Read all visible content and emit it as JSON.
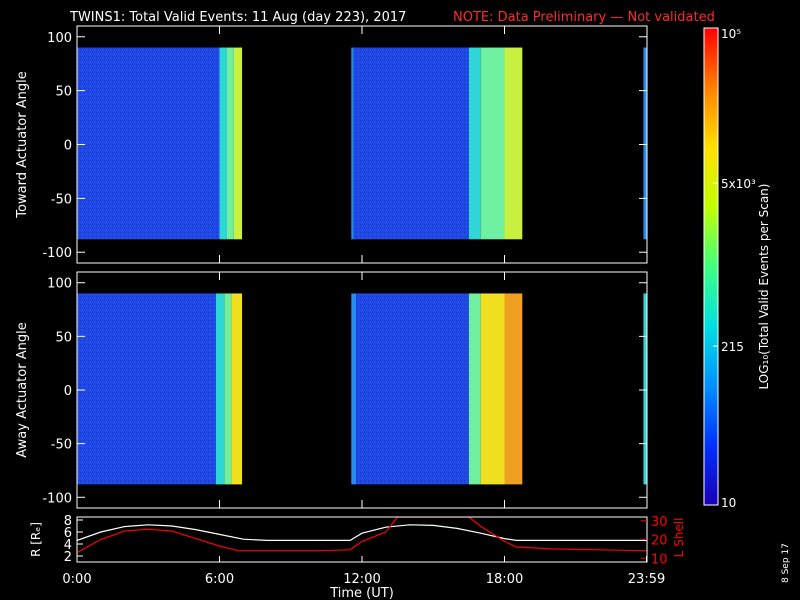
{
  "header": {
    "title": "TWINS1: Total Valid Events: 11 Aug (day 223), 2017",
    "note": "NOTE: Data Preliminary — Not validated"
  },
  "side_date": "8 Sep 17",
  "chart_data": [
    {
      "type": "heatmap",
      "name": "top-panel",
      "ylabel": "Toward Actuator Angle",
      "ylim": [
        -110,
        110
      ],
      "yticks": [
        100,
        50,
        0,
        -50,
        -100
      ],
      "xlim": [
        0,
        24
      ],
      "data_y_range": [
        -88,
        90
      ],
      "blocks": [
        {
          "start": 0.0,
          "end": 6.0,
          "level": "blue"
        },
        {
          "start": 6.0,
          "end": 6.3,
          "level": "cyan"
        },
        {
          "start": 6.3,
          "end": 6.6,
          "level": "lightgreen"
        },
        {
          "start": 6.6,
          "end": 6.95,
          "level": "yellowgreen"
        },
        {
          "start": 11.55,
          "end": 11.65,
          "level": "lightblue"
        },
        {
          "start": 11.65,
          "end": 16.5,
          "level": "blue"
        },
        {
          "start": 16.5,
          "end": 17.0,
          "level": "cyan"
        },
        {
          "start": 17.0,
          "end": 18.0,
          "level": "lightgreen"
        },
        {
          "start": 18.0,
          "end": 18.75,
          "level": "yellowgreen"
        },
        {
          "start": 23.85,
          "end": 23.98,
          "level": "lightblue"
        }
      ]
    },
    {
      "type": "heatmap",
      "name": "bottom-panel",
      "ylabel": "Away Actuator Angle",
      "ylim": [
        -110,
        110
      ],
      "yticks": [
        100,
        50,
        0,
        -50,
        -100
      ],
      "xlim": [
        0,
        24
      ],
      "data_y_range": [
        -88,
        90
      ],
      "blocks": [
        {
          "start": 0.0,
          "end": 5.85,
          "level": "blue"
        },
        {
          "start": 5.85,
          "end": 6.2,
          "level": "cyan"
        },
        {
          "start": 6.2,
          "end": 6.5,
          "level": "lightgreen"
        },
        {
          "start": 6.5,
          "end": 6.95,
          "level": "yellow"
        },
        {
          "start": 11.55,
          "end": 11.75,
          "level": "lightblue"
        },
        {
          "start": 11.75,
          "end": 16.5,
          "level": "blue"
        },
        {
          "start": 16.5,
          "end": 17.0,
          "level": "lightgreen"
        },
        {
          "start": 17.0,
          "end": 18.0,
          "level": "yellow"
        },
        {
          "start": 18.0,
          "end": 18.75,
          "level": "orange"
        },
        {
          "start": 23.85,
          "end": 23.98,
          "level": "cyan"
        }
      ]
    },
    {
      "type": "line",
      "name": "orbit-panel",
      "ylabel_left": "R [Rₑ]",
      "ylabel_right": "L Shell",
      "yleft_ticks": [
        2,
        4,
        6,
        8
      ],
      "yleft_lim": [
        1,
        8.5
      ],
      "yright_ticks": [
        10,
        20,
        30
      ],
      "yright_lim": [
        8,
        32
      ],
      "xlim": [
        0,
        24
      ],
      "xticks": [
        "0:00",
        "6:00",
        "12:00",
        "18:00",
        "23:59"
      ],
      "xtick_values": [
        0,
        6,
        12,
        18,
        23.98
      ],
      "xlabel": "Time (UT)",
      "series": [
        {
          "axis": "left",
          "color": "#ffffff",
          "x": [
            0,
            1,
            2,
            3,
            4,
            5,
            6,
            7,
            8,
            9,
            10,
            11,
            11.5,
            12,
            13,
            14,
            15,
            16,
            17,
            18,
            18.5,
            19,
            20,
            21,
            22,
            23,
            24
          ],
          "y": [
            4.6,
            6.0,
            6.9,
            7.2,
            7.0,
            6.4,
            5.6,
            4.8,
            4.6,
            4.6,
            4.6,
            4.6,
            4.6,
            5.8,
            6.8,
            7.2,
            7.1,
            6.6,
            5.8,
            4.9,
            4.6,
            4.6,
            4.6,
            4.6,
            4.6,
            4.6,
            4.6
          ]
        },
        {
          "axis": "right",
          "color": "#ff0000",
          "x": [
            0,
            1,
            2,
            3,
            4,
            5,
            6,
            6.8,
            8,
            10,
            11.5,
            12,
            13,
            13.5,
            14.2,
            16.5,
            17,
            18,
            18.5,
            20,
            22,
            24
          ],
          "y": [
            13,
            20,
            24.5,
            25.5,
            24.5,
            20.5,
            16.5,
            14,
            14,
            14,
            14.5,
            19,
            24,
            32,
            32,
            32,
            27,
            19,
            16,
            15,
            14.5,
            14
          ]
        }
      ]
    },
    {
      "type": "heatmap",
      "name": "colorbar",
      "scale": "log",
      "label": "LOG₁₀(Total Valid Events per Scan)",
      "ticks": [
        {
          "value": 10,
          "label": "10"
        },
        {
          "value": 215,
          "label": "215"
        },
        {
          "value": 5000,
          "label": "5x10³"
        },
        {
          "value": 100000,
          "label": "10⁵"
        }
      ],
      "range": [
        10,
        100000
      ],
      "colors": [
        "#1a00b4",
        "#0030ff",
        "#0090ff",
        "#00e0e0",
        "#40ff80",
        "#c0ff00",
        "#ffe000",
        "#ff8000",
        "#ff0000"
      ]
    }
  ],
  "palette": {
    "blue": "#1f48e6",
    "lightblue": "#2a8cf0",
    "cyan": "#2fd6d6",
    "lightgreen": "#6ef0a0",
    "yellowgreen": "#c8f040",
    "yellow": "#f0e020",
    "orange": "#f0a020",
    "frame": "#ffffff"
  }
}
